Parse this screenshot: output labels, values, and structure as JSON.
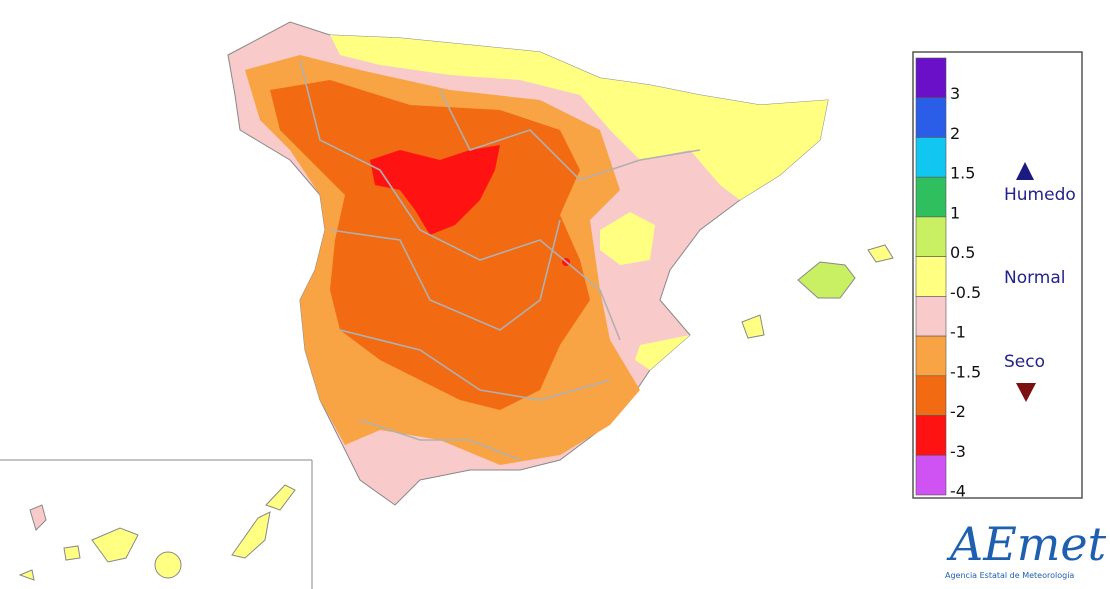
{
  "legend": {
    "colors": [
      "#6a10c8",
      "#2a5ee8",
      "#12c6f2",
      "#2fbf5e",
      "#c8f062",
      "#ffff82",
      "#f9caca",
      "#f9a444",
      "#f26a12",
      "#ff1212",
      "#cf52f2"
    ],
    "ticks": [
      3,
      2,
      1.5,
      1,
      0.5,
      -0.5,
      -1,
      -1.5,
      -2,
      -3,
      -4
    ],
    "classes": {
      "wet": "Humedo",
      "normal": "Normal",
      "dry": "Seco"
    }
  },
  "logo": {
    "name": "AEmet",
    "subtitle": "Agencia Estatal de Meteorología"
  }
}
